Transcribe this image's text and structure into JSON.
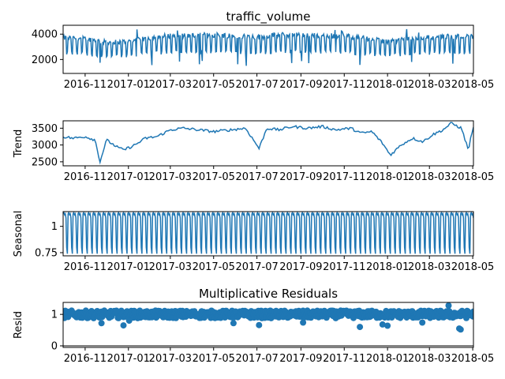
{
  "chart_data": [
    {
      "type": "line",
      "panel": "observed",
      "title": "traffic_volume",
      "ylabel": "",
      "ylim": [
        900,
        4700
      ],
      "yticks": [
        2000,
        4000
      ],
      "xlim": [
        "2016-10-01",
        "2018-05-02"
      ],
      "xticks": [
        "2016-11",
        "2017-01",
        "2017-03",
        "2017-05",
        "2017-07",
        "2017-09",
        "2017-11",
        "2018-01",
        "2018-03",
        "2018-05"
      ],
      "series_color": "#1f77b4",
      "series": {
        "x": [
          "2016-10-01",
          "2016-11-01",
          "2016-12-01",
          "2017-01-01",
          "2017-02-01",
          "2017-03-01",
          "2017-04-01",
          "2017-05-01",
          "2017-06-01",
          "2017-07-01",
          "2017-08-01",
          "2017-09-01",
          "2017-10-01",
          "2017-11-01",
          "2017-12-01",
          "2018-01-01",
          "2018-02-01",
          "2018-03-01",
          "2018-04-01",
          "2018-05-01"
        ],
        "base": [
          3250,
          3200,
          2950,
          3000,
          3250,
          3400,
          3400,
          3450,
          3400,
          3300,
          3450,
          3450,
          3400,
          3400,
          3200,
          3000,
          3200,
          3300,
          3350,
          3350
        ],
        "daily_min": 1500,
        "daily_max": 4400
      }
    },
    {
      "type": "line",
      "panel": "trend",
      "title": "",
      "ylabel": "Trend",
      "ylim": [
        2380,
        3720
      ],
      "yticks": [
        2500,
        3000,
        3500
      ],
      "xlim": [
        "2016-10-01",
        "2018-05-02"
      ],
      "xticks": [
        "2016-11",
        "2017-01",
        "2017-03",
        "2017-05",
        "2017-07",
        "2017-09",
        "2017-11",
        "2018-01",
        "2018-03",
        "2018-05"
      ],
      "series_color": "#1f77b4",
      "series": {
        "x": [
          "2016-10-01",
          "2016-10-15",
          "2016-11-01",
          "2016-11-15",
          "2016-11-22",
          "2016-12-01",
          "2016-12-15",
          "2016-12-25",
          "2017-01-10",
          "2017-01-25",
          "2017-02-10",
          "2017-03-01",
          "2017-03-20",
          "2017-04-10",
          "2017-05-01",
          "2017-05-25",
          "2017-06-15",
          "2017-07-04",
          "2017-07-15",
          "2017-08-01",
          "2017-08-20",
          "2017-09-10",
          "2017-10-01",
          "2017-10-20",
          "2017-11-10",
          "2017-11-25",
          "2017-12-10",
          "2017-12-25",
          "2018-01-05",
          "2018-01-20",
          "2018-02-05",
          "2018-02-20",
          "2018-03-05",
          "2018-03-20",
          "2018-04-01",
          "2018-04-15",
          "2018-04-25",
          "2018-05-01"
        ],
        "y": [
          3250,
          3200,
          3250,
          3150,
          2500,
          3150,
          2950,
          2850,
          3000,
          3200,
          3250,
          3450,
          3500,
          3450,
          3400,
          3450,
          3500,
          2900,
          3500,
          3450,
          3550,
          3500,
          3550,
          3450,
          3500,
          3350,
          3400,
          3050,
          2700,
          3000,
          3200,
          3100,
          3300,
          3450,
          3650,
          3500,
          2850,
          3500
        ]
      }
    },
    {
      "type": "line",
      "panel": "seasonal",
      "title": "",
      "ylabel": "Seasonal",
      "ylim": [
        0.72,
        1.14
      ],
      "yticks": [
        0.75,
        1.0
      ],
      "xlim": [
        "2016-10-01",
        "2018-05-02"
      ],
      "xticks": [
        "2016-11",
        "2017-01",
        "2017-03",
        "2017-05",
        "2017-07",
        "2017-09",
        "2017-11",
        "2018-01",
        "2018-03",
        "2018-05"
      ],
      "series_color": "#1f77b4",
      "series": {
        "period_days": 7,
        "weekly_pattern": [
          1.12,
          1.13,
          1.11,
          1.12,
          1.08,
          0.8,
          0.74
        ]
      }
    },
    {
      "type": "scatter",
      "panel": "resid",
      "title": "Multiplicative Residuals",
      "ylabel": "Resid",
      "ylim": [
        -0.05,
        1.38
      ],
      "yticks": [
        0,
        1
      ],
      "xlim": [
        "2016-10-01",
        "2018-05-02"
      ],
      "xticks": [
        "2016-11",
        "2017-01",
        "2017-03",
        "2017-05",
        "2017-07",
        "2017-09",
        "2017-11",
        "2018-01",
        "2018-03",
        "2018-05"
      ],
      "series_color": "#1f77b4",
      "baseline": 0,
      "series": {
        "center": 1.0,
        "spread_min": 0.88,
        "spread_max": 1.12,
        "outliers": [
          {
            "x": "2016-11-24",
            "y": 0.72
          },
          {
            "x": "2016-12-25",
            "y": 0.65
          },
          {
            "x": "2017-01-02",
            "y": 0.8
          },
          {
            "x": "2017-05-29",
            "y": 0.72
          },
          {
            "x": "2017-07-04",
            "y": 0.66
          },
          {
            "x": "2017-09-04",
            "y": 0.74
          },
          {
            "x": "2017-11-23",
            "y": 0.6
          },
          {
            "x": "2017-12-25",
            "y": 0.68
          },
          {
            "x": "2018-01-01",
            "y": 0.64
          },
          {
            "x": "2018-02-19",
            "y": 0.74
          },
          {
            "x": "2018-03-28",
            "y": 1.28
          },
          {
            "x": "2018-04-12",
            "y": 0.55
          },
          {
            "x": "2018-04-14",
            "y": 0.52
          }
        ]
      }
    }
  ]
}
